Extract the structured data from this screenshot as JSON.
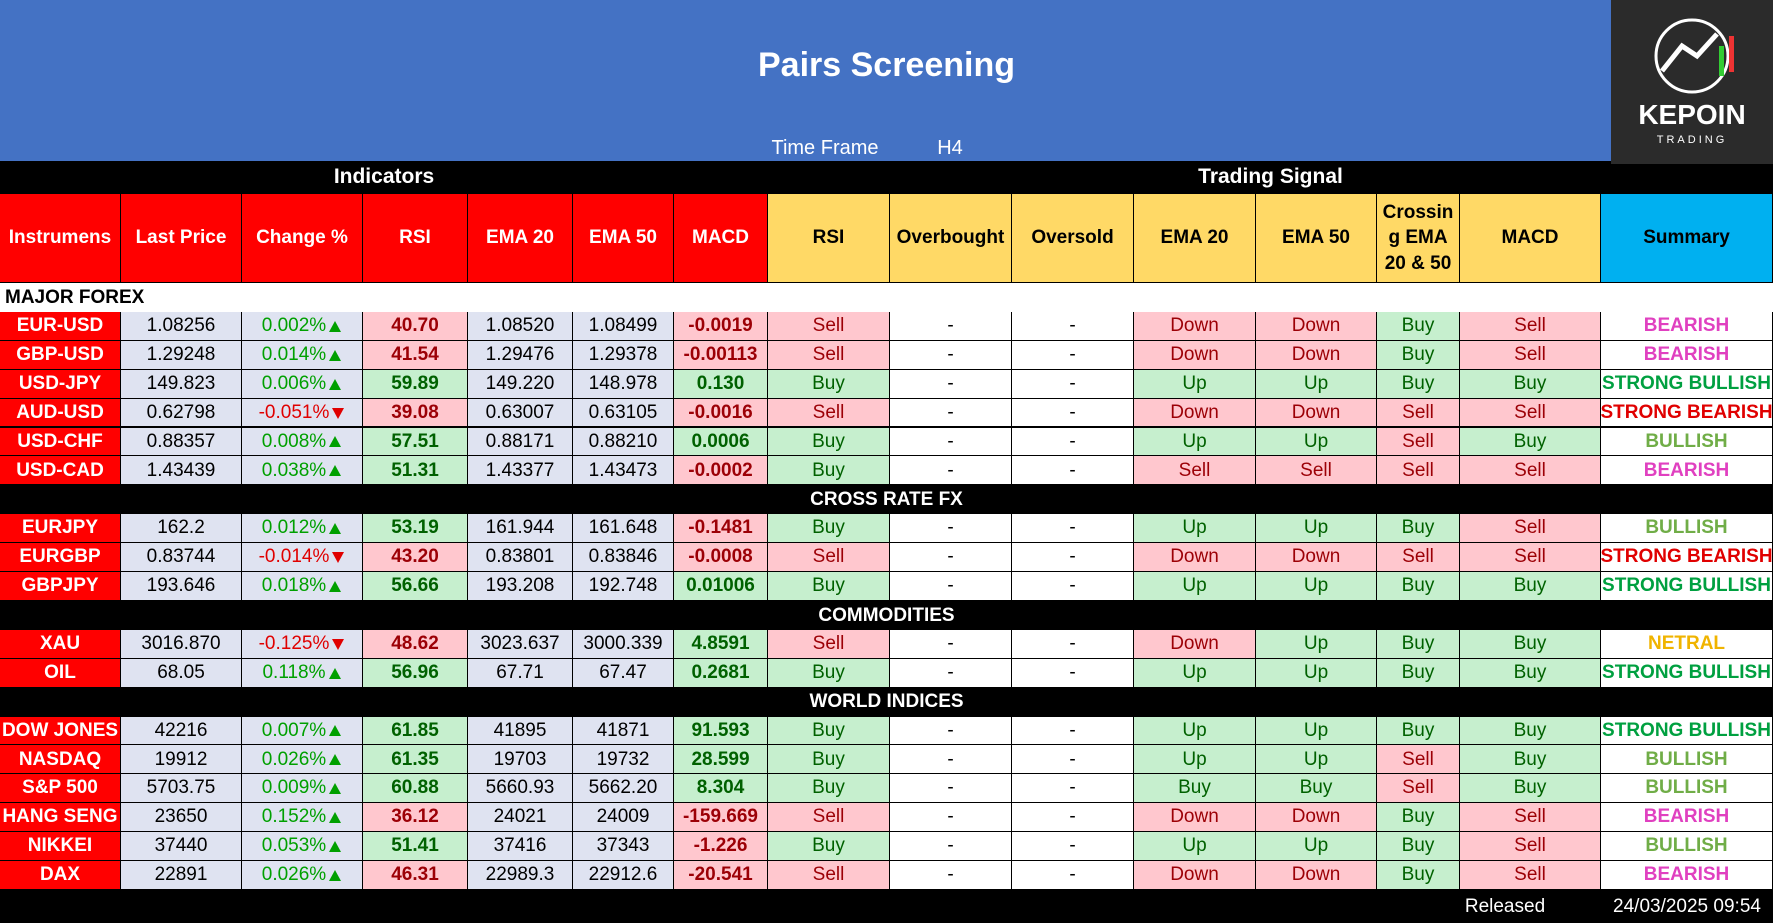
{
  "header": {
    "title": "Pairs Screening",
    "time_frame_label": "Time Frame",
    "time_frame": "H4"
  },
  "logo": {
    "name": "KEPOIN",
    "tagline": "TRADING"
  },
  "groups": [
    "Indicators",
    "Trading Signal"
  ],
  "columns": [
    "Instrumens",
    "Last Price",
    "Change %",
    "RSI",
    "EMA 20",
    "EMA 50",
    "MACD",
    "RSI",
    "Overbought",
    "Oversold",
    "EMA 20",
    "EMA 50",
    "Crossing EMA 20 & 50",
    "MACD",
    "Summary"
  ],
  "sections": [
    {
      "name": "MAJOR FOREX",
      "rows": [
        [
          "EUR-USD",
          "1.08256",
          "0.002%",
          "40.70",
          "1.08520",
          "1.08499",
          "-0.0019",
          "Sell",
          "-",
          "-",
          "Down",
          "Down",
          "Buy",
          "Sell",
          "BEARISH"
        ],
        [
          "GBP-USD",
          "1.29248",
          "0.014%",
          "41.54",
          "1.29476",
          "1.29378",
          "-0.00113",
          "Sell",
          "-",
          "-",
          "Down",
          "Down",
          "Buy",
          "Sell",
          "BEARISH"
        ],
        [
          "USD-JPY",
          "149.823",
          "0.006%",
          "59.89",
          "149.220",
          "148.978",
          "0.130",
          "Buy",
          "-",
          "-",
          "Up",
          "Up",
          "Buy",
          "Buy",
          "STRONG BULLISH"
        ],
        [
          "AUD-USD",
          "0.62798",
          "-0.051%",
          "39.08",
          "0.63007",
          "0.63105",
          "-0.0016",
          "Sell",
          "-",
          "-",
          "Down",
          "Down",
          "Sell",
          "Sell",
          "STRONG BEARISH"
        ],
        [
          "USD-CHF",
          "0.88357",
          "0.008%",
          "57.51",
          "0.88171",
          "0.88210",
          "0.0006",
          "Buy",
          "-",
          "-",
          "Up",
          "Up",
          "Sell",
          "Buy",
          "BULLISH"
        ],
        [
          "USD-CAD",
          "1.43439",
          "0.038%",
          "51.31",
          "1.43377",
          "1.43473",
          "-0.0002",
          "Buy",
          "-",
          "-",
          "Sell",
          "Sell",
          "Sell",
          "Sell",
          "BEARISH"
        ]
      ]
    },
    {
      "name": "CROSS RATE FX",
      "rows": [
        [
          "EURJPY",
          "162.2",
          "0.012%",
          "53.19",
          "161.944",
          "161.648",
          "-0.1481",
          "Buy",
          "-",
          "-",
          "Up",
          "Up",
          "Buy",
          "Sell",
          "BULLISH"
        ],
        [
          "EURGBP",
          "0.83744",
          "-0.014%",
          "43.20",
          "0.83801",
          "0.83846",
          "-0.0008",
          "Sell",
          "-",
          "-",
          "Down",
          "Down",
          "Sell",
          "Sell",
          "STRONG BEARISH"
        ],
        [
          "GBPJPY",
          "193.646",
          "0.018%",
          "56.66",
          "193.208",
          "192.748",
          "0.01006",
          "Buy",
          "-",
          "-",
          "Up",
          "Up",
          "Buy",
          "Buy",
          "STRONG BULLISH"
        ]
      ]
    },
    {
      "name": "COMMODITIES",
      "rows": [
        [
          "XAU",
          "3016.870",
          "-0.125%",
          "48.62",
          "3023.637",
          "3000.339",
          "4.8591",
          "Sell",
          "-",
          "-",
          "Down",
          "Up",
          "Buy",
          "Buy",
          "NETRAL"
        ],
        [
          "OIL",
          "68.05",
          "0.118%",
          "56.96",
          "67.71",
          "67.47",
          "0.2681",
          "Buy",
          "-",
          "-",
          "Up",
          "Up",
          "Buy",
          "Buy",
          "STRONG BULLISH"
        ]
      ]
    },
    {
      "name": "WORLD INDICES",
      "rows": [
        [
          "DOW JONES",
          "42216",
          "0.007%",
          "61.85",
          "41895",
          "41871",
          "91.593",
          "Buy",
          "-",
          "-",
          "Up",
          "Up",
          "Buy",
          "Buy",
          "STRONG BULLISH"
        ],
        [
          "NASDAQ",
          "19912",
          "0.026%",
          "61.35",
          "19703",
          "19732",
          "28.599",
          "Buy",
          "-",
          "-",
          "Up",
          "Up",
          "Sell",
          "Buy",
          "BULLISH"
        ],
        [
          "S&P 500",
          "5703.75",
          "0.009%",
          "60.88",
          "5660.93",
          "5662.20",
          "8.304",
          "Buy",
          "-",
          "-",
          "Buy",
          "Buy",
          "Sell",
          "Buy",
          "BULLISH"
        ],
        [
          "HANG SENG",
          "23650",
          "0.152%",
          "36.12",
          "24021",
          "24009",
          "-159.669",
          "Sell",
          "-",
          "-",
          "Down",
          "Down",
          "Buy",
          "Sell",
          "BEARISH"
        ],
        [
          "NIKKEI",
          "37440",
          "0.053%",
          "51.41",
          "37416",
          "37343",
          "-1.226",
          "Buy",
          "-",
          "-",
          "Up",
          "Up",
          "Buy",
          "Sell",
          "BULLISH"
        ],
        [
          "DAX",
          "22891",
          "0.026%",
          "46.31",
          "22989.3",
          "22912.6",
          "-20.541",
          "Sell",
          "-",
          "-",
          "Down",
          "Down",
          "Buy",
          "Sell",
          "BEARISH"
        ]
      ]
    }
  ],
  "footer": {
    "label": "Released",
    "date": "24/03/2025 09:54"
  },
  "palette": {
    "signal_fill": {
      "Buy": "#c6efce",
      "Up": "#c6efce",
      "Sell": "#ffc7ce",
      "Down": "#ffc7ce",
      "-": "#ffffff"
    },
    "signal_text": {
      "Buy": "#006100",
      "Up": "#006100",
      "Sell": "#9c0006",
      "Down": "#9c0006",
      "-": "#000000"
    },
    "summary_text": {
      "BEARISH": "#e040c0",
      "STRONG BEARISH": "#e00000",
      "BULLISH": "#70ad47",
      "STRONG BULLISH": "#00a040",
      "NETRAL": "#f0b400"
    },
    "up": "#00a000",
    "down": "#e00000"
  }
}
